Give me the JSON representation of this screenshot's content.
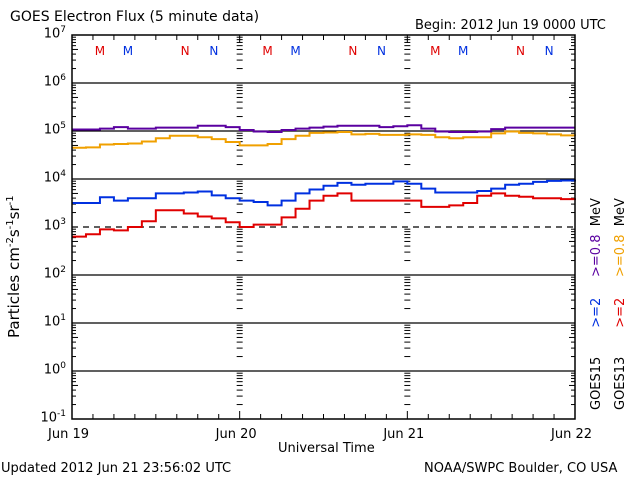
{
  "chart_data": {
    "type": "line",
    "title": "GOES Electron Flux (5 minute data)",
    "subtitle": "Begin: 2012 Jun 19 0000 UTC",
    "xlabel": "Universal Time",
    "ylabel": "Particles cm-2 s-1 sr-1",
    "ylabel_parts": {
      "base": "Particles cm",
      "e1": "-2",
      "s": "s",
      "e2": "-1",
      "sr": "sr",
      "e3": "-1"
    },
    "yscale": "log",
    "ylim_log10": [
      -1,
      7
    ],
    "xlim_hours": [
      0,
      72
    ],
    "x_ticks": [
      {
        "label": "Jun 19",
        "hour": 0
      },
      {
        "label": "Jun 20",
        "hour": 24
      },
      {
        "label": "Jun 21",
        "hour": 48
      },
      {
        "label": "Jun 22",
        "hour": 72
      }
    ],
    "y_ticks": [
      {
        "exp": 7,
        "base": "10",
        "sup": "7"
      },
      {
        "exp": 6,
        "base": "10",
        "sup": "6"
      },
      {
        "exp": 5,
        "base": "10",
        "sup": "5"
      },
      {
        "exp": 4,
        "base": "10",
        "sup": "4"
      },
      {
        "exp": 3,
        "base": "10",
        "sup": "3"
      },
      {
        "exp": 2,
        "base": "10",
        "sup": "2"
      },
      {
        "exp": 1,
        "base": "10",
        "sup": "1"
      },
      {
        "exp": 0,
        "base": "10",
        "sup": "0"
      },
      {
        "exp": -1,
        "base": "10",
        "sup": "-1"
      }
    ],
    "grid_decades_solid": [
      6,
      5,
      4,
      2,
      1,
      0
    ],
    "threshold_dashed_log10": 3,
    "markers": [
      {
        "label": "M",
        "hour": 4.0,
        "color": "#e00000"
      },
      {
        "label": "M",
        "hour": 8.0,
        "color": "#0030e0"
      },
      {
        "label": "N",
        "hour": 16.2,
        "color": "#e00000"
      },
      {
        "label": "N",
        "hour": 20.3,
        "color": "#0030e0"
      },
      {
        "label": "M",
        "hour": 28.0,
        "color": "#e00000"
      },
      {
        "label": "M",
        "hour": 32.0,
        "color": "#0030e0"
      },
      {
        "label": "N",
        "hour": 40.2,
        "color": "#e00000"
      },
      {
        "label": "N",
        "hour": 44.3,
        "color": "#0030e0"
      },
      {
        "label": "M",
        "hour": 52.0,
        "color": "#e00000"
      },
      {
        "label": "M",
        "hour": 56.0,
        "color": "#0030e0"
      },
      {
        "label": "N",
        "hour": 64.2,
        "color": "#e00000"
      },
      {
        "label": "N",
        "hour": 68.3,
        "color": "#0030e0"
      }
    ],
    "series": [
      {
        "name": "GOES15 >=0.8 MeV",
        "color": "#5a00a0",
        "x_hours": [
          0,
          2,
          4,
          6,
          8,
          10,
          12,
          14,
          16,
          18,
          20,
          22,
          24,
          26,
          28,
          30,
          32,
          34,
          36,
          38,
          40,
          42,
          44,
          46,
          48,
          50,
          52,
          54,
          56,
          58,
          60,
          62,
          64,
          66,
          68,
          70,
          72
        ],
        "log10": [
          5.03,
          5.03,
          5.05,
          5.08,
          5.05,
          5.05,
          5.07,
          5.07,
          5.07,
          5.11,
          5.11,
          5.08,
          5.02,
          4.99,
          4.98,
          5.02,
          5.05,
          5.07,
          5.09,
          5.11,
          5.11,
          5.11,
          5.08,
          5.1,
          5.12,
          5.05,
          4.99,
          4.98,
          4.98,
          4.99,
          5.04,
          5.07,
          5.07,
          5.07,
          5.07,
          5.07,
          5.07
        ]
      },
      {
        "name": "GOES13 >=0.8 MeV",
        "color": "#f0a000",
        "x_hours": [
          0,
          2,
          4,
          6,
          8,
          10,
          12,
          14,
          16,
          18,
          20,
          22,
          24,
          26,
          28,
          30,
          32,
          34,
          36,
          38,
          40,
          42,
          44,
          46,
          48,
          50,
          52,
          54,
          56,
          58,
          60,
          62,
          64,
          66,
          68,
          70,
          72
        ],
        "log10": [
          4.65,
          4.66,
          4.72,
          4.73,
          4.74,
          4.78,
          4.85,
          4.9,
          4.9,
          4.87,
          4.83,
          4.77,
          4.7,
          4.7,
          4.73,
          4.83,
          4.9,
          4.96,
          4.97,
          4.98,
          4.93,
          4.94,
          4.92,
          4.92,
          4.93,
          4.92,
          4.87,
          4.85,
          4.87,
          4.87,
          4.95,
          4.99,
          4.96,
          4.95,
          4.93,
          4.91,
          4.9
        ]
      },
      {
        "name": "GOES15 >=2 MeV",
        "color": "#0030e0",
        "x_hours": [
          0,
          2,
          4,
          6,
          8,
          10,
          12,
          14,
          16,
          18,
          20,
          22,
          24,
          26,
          28,
          30,
          32,
          34,
          36,
          38,
          40,
          42,
          44,
          46,
          48,
          50,
          52,
          54,
          56,
          58,
          60,
          62,
          64,
          66,
          68,
          70,
          72
        ],
        "log10": [
          3.5,
          3.5,
          3.62,
          3.55,
          3.6,
          3.6,
          3.7,
          3.7,
          3.72,
          3.74,
          3.66,
          3.6,
          3.55,
          3.52,
          3.45,
          3.55,
          3.7,
          3.78,
          3.86,
          3.92,
          3.88,
          3.9,
          3.9,
          3.95,
          3.9,
          3.8,
          3.72,
          3.72,
          3.72,
          3.75,
          3.8,
          3.88,
          3.9,
          3.94,
          3.96,
          3.97,
          3.99
        ]
      },
      {
        "name": "GOES13 >=2 MeV",
        "color": "#e00000",
        "x_hours": [
          0,
          2,
          4,
          6,
          8,
          10,
          12,
          14,
          16,
          18,
          20,
          22,
          24,
          26,
          28,
          30,
          32,
          34,
          36,
          38,
          40,
          42,
          44,
          46,
          48,
          50,
          52,
          54,
          56,
          58,
          60,
          62,
          64,
          66,
          68,
          70,
          72
        ],
        "log10": [
          2.8,
          2.85,
          2.95,
          2.93,
          3.0,
          3.12,
          3.35,
          3.35,
          3.28,
          3.22,
          3.18,
          3.1,
          3.0,
          3.05,
          3.05,
          3.2,
          3.38,
          3.55,
          3.65,
          3.7,
          3.55,
          3.55,
          3.55,
          3.55,
          3.55,
          3.42,
          3.42,
          3.45,
          3.5,
          3.65,
          3.7,
          3.65,
          3.63,
          3.6,
          3.6,
          3.58,
          3.6
        ]
      }
    ],
    "legend": [
      {
        "text": "GOES15",
        "color": "#000000"
      },
      {
        "text": ">=2",
        "color": "#0030e0"
      },
      {
        "text": ">=0.8",
        "color": "#5a00a0"
      },
      {
        "text": "MeV",
        "color": "#000000"
      },
      {
        "text": "GOES13",
        "color": "#000000"
      },
      {
        "text": ">=2",
        "color": "#e00000"
      },
      {
        "text": ">=0.8",
        "color": "#f0a000"
      },
      {
        "text": "MeV",
        "color": "#000000"
      }
    ],
    "legend_placement": "right-vertical"
  },
  "footer": {
    "updated": "Updated 2012 Jun 21 23:56:02 UTC",
    "source": "NOAA/SWPC Boulder, CO USA"
  }
}
